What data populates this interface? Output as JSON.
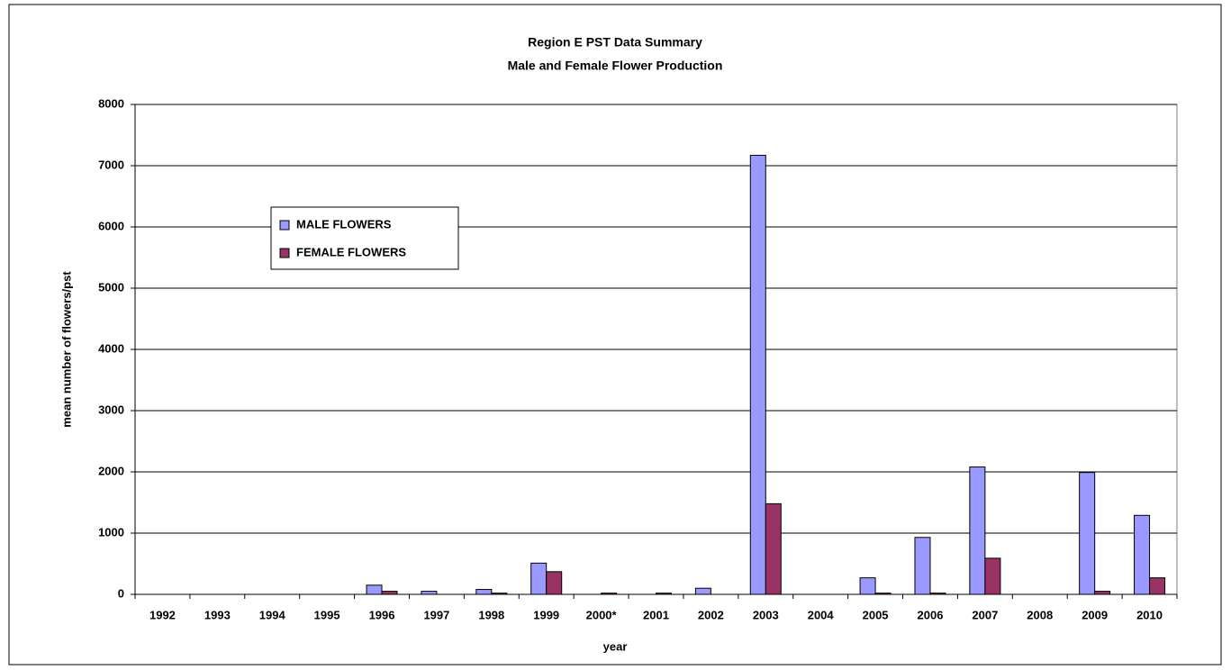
{
  "chart_data": {
    "type": "bar",
    "title": "Region E PST Data Summary",
    "subtitle": "Male and Female Flower Production",
    "x_label": "year",
    "y_label": "mean number of flowers/pst",
    "categories": [
      "1992",
      "1993",
      "1994",
      "1995",
      "1996",
      "1997",
      "1998",
      "1999",
      "2000*",
      "2001",
      "2002",
      "2003",
      "2004",
      "2005",
      "2006",
      "2007",
      "2008",
      "2009",
      "2010"
    ],
    "series": [
      {
        "name": "MALE FLOWERS",
        "color": "#9999ff",
        "values": [
          0,
          0,
          0,
          0,
          150,
          50,
          80,
          510,
          0,
          0,
          100,
          7170,
          0,
          270,
          930,
          2080,
          0,
          1990,
          1290
        ]
      },
      {
        "name": "FEMALE FLOWERS",
        "color": "#993366",
        "values": [
          0,
          0,
          0,
          0,
          50,
          0,
          20,
          370,
          20,
          20,
          0,
          1480,
          0,
          20,
          20,
          590,
          0,
          50,
          270
        ]
      }
    ],
    "ylim": [
      0,
      8000
    ],
    "yticks": [
      0,
      1000,
      2000,
      3000,
      4000,
      5000,
      6000,
      7000,
      8000
    ],
    "grid": true,
    "legend": "upper left"
  }
}
